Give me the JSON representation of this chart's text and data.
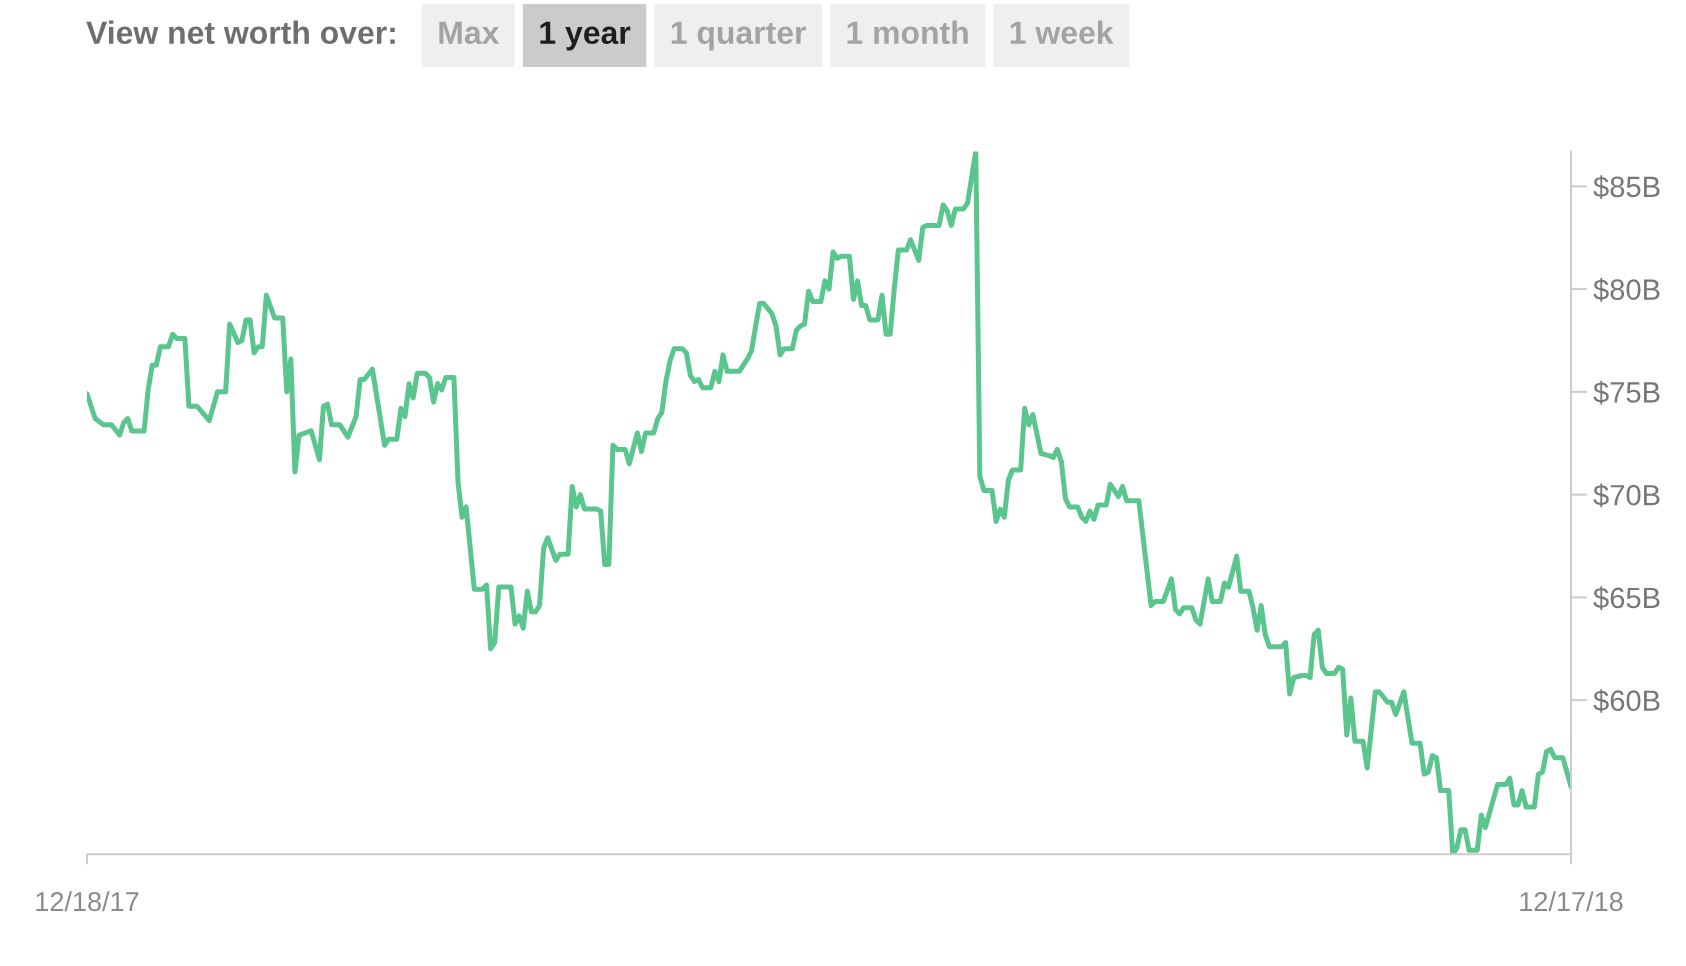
{
  "chart_data": {
    "type": "line",
    "title": "View net worth over:",
    "annotations": [
      "Max",
      "1 year",
      "1 quarter",
      "1 month",
      "1 week"
    ],
    "x": [
      "2017-12-18",
      "2017-12-20",
      "2017-12-22",
      "2017-12-24",
      "2017-12-26",
      "2017-12-27",
      "2017-12-28",
      "2017-12-29",
      "2018-01-01",
      "2018-01-02",
      "2018-01-03",
      "2018-01-04",
      "2018-01-05",
      "2018-01-07",
      "2018-01-08",
      "2018-01-09",
      "2018-01-11",
      "2018-01-12",
      "2018-01-14",
      "2018-01-17",
      "2018-01-19",
      "2018-01-21",
      "2018-01-22",
      "2018-01-24",
      "2018-01-25",
      "2018-01-26",
      "2018-01-27",
      "2018-01-28",
      "2018-01-29",
      "2018-01-30",
      "2018-01-31",
      "2018-02-02",
      "2018-02-04",
      "2018-02-05",
      "2018-02-06",
      "2018-02-07",
      "2018-02-08",
      "2018-02-11",
      "2018-02-13",
      "2018-02-14",
      "2018-02-15",
      "2018-02-16",
      "2018-02-18",
      "2018-02-20",
      "2018-02-22",
      "2018-02-23",
      "2018-02-24",
      "2018-02-26",
      "2018-03-01",
      "2018-03-02",
      "2018-03-04",
      "2018-03-05",
      "2018-03-06",
      "2018-03-07",
      "2018-03-08",
      "2018-03-09",
      "2018-03-11",
      "2018-03-12",
      "2018-03-13",
      "2018-03-14",
      "2018-03-15",
      "2018-03-16",
      "2018-03-18",
      "2018-03-19",
      "2018-03-20",
      "2018-03-21",
      "2018-03-23",
      "2018-03-25",
      "2018-03-26",
      "2018-03-27",
      "2018-03-28",
      "2018-03-29",
      "2018-04-01",
      "2018-04-02",
      "2018-04-03",
      "2018-04-04",
      "2018-04-05",
      "2018-04-06",
      "2018-04-07",
      "2018-04-08",
      "2018-04-09",
      "2018-04-10",
      "2018-04-12",
      "2018-04-13",
      "2018-04-15",
      "2018-04-16",
      "2018-04-17",
      "2018-04-18",
      "2018-04-19",
      "2018-04-22",
      "2018-04-23",
      "2018-04-24",
      "2018-04-25",
      "2018-04-26",
      "2018-04-27",
      "2018-04-29",
      "2018-04-30",
      "2018-05-02",
      "2018-05-03",
      "2018-05-04",
      "2018-05-06",
      "2018-05-07",
      "2018-05-08",
      "2018-05-09",
      "2018-05-10",
      "2018-05-11",
      "2018-05-13",
      "2018-05-14",
      "2018-05-15",
      "2018-05-16",
      "2018-05-17",
      "2018-05-18",
      "2018-05-20",
      "2018-05-21",
      "2018-05-22",
      "2018-05-23",
      "2018-05-24",
      "2018-05-27",
      "2018-05-29",
      "2018-05-30",
      "2018-05-31",
      "2018-06-01",
      "2018-06-02",
      "2018-06-04",
      "2018-06-05",
      "2018-06-06",
      "2018-06-07",
      "2018-06-09",
      "2018-06-10",
      "2018-06-11",
      "2018-06-12",
      "2018-06-13",
      "2018-06-14",
      "2018-06-16",
      "2018-06-17",
      "2018-06-18",
      "2018-06-19",
      "2018-06-20",
      "2018-06-21",
      "2018-06-23",
      "2018-06-24",
      "2018-06-25",
      "2018-06-26",
      "2018-06-27",
      "2018-06-28",
      "2018-06-30",
      "2018-07-01",
      "2018-07-02",
      "2018-07-03",
      "2018-07-04",
      "2018-07-05",
      "2018-07-07",
      "2018-07-08",
      "2018-07-10",
      "2018-07-11",
      "2018-07-12",
      "2018-07-15",
      "2018-07-16",
      "2018-07-17",
      "2018-07-18",
      "2018-07-19",
      "2018-07-21",
      "2018-07-22",
      "2018-07-24",
      "2018-07-25",
      "2018-07-26",
      "2018-07-28",
      "2018-07-29",
      "2018-07-30",
      "2018-07-31",
      "2018-08-01",
      "2018-08-02",
      "2018-08-04",
      "2018-08-05",
      "2018-08-06",
      "2018-08-07",
      "2018-08-09",
      "2018-08-11",
      "2018-08-12",
      "2018-08-13",
      "2018-08-14",
      "2018-08-15",
      "2018-08-16",
      "2018-08-18",
      "2018-08-19",
      "2018-08-20",
      "2018-08-21",
      "2018-08-22",
      "2018-08-23",
      "2018-08-25",
      "2018-08-26",
      "2018-08-28",
      "2018-08-29",
      "2018-08-30",
      "2018-09-02",
      "2018-09-05",
      "2018-09-06",
      "2018-09-08",
      "2018-09-10",
      "2018-09-11",
      "2018-09-12",
      "2018-09-13",
      "2018-09-15",
      "2018-09-16",
      "2018-09-17",
      "2018-09-19",
      "2018-09-20",
      "2018-09-22",
      "2018-09-23",
      "2018-09-24",
      "2018-09-26",
      "2018-09-27",
      "2018-09-29",
      "2018-09-30",
      "2018-10-01",
      "2018-10-02",
      "2018-10-03",
      "2018-10-04",
      "2018-10-07",
      "2018-10-08",
      "2018-10-09",
      "2018-10-10",
      "2018-10-12",
      "2018-10-13",
      "2018-10-14",
      "2018-10-15",
      "2018-10-16",
      "2018-10-17",
      "2018-10-18",
      "2018-10-20",
      "2018-10-21",
      "2018-10-22",
      "2018-10-23",
      "2018-10-24",
      "2018-10-25",
      "2018-10-27",
      "2018-10-28",
      "2018-10-30",
      "2018-10-31",
      "2018-11-02",
      "2018-11-03",
      "2018-11-04",
      "2018-11-06",
      "2018-11-08",
      "2018-11-10",
      "2018-11-11",
      "2018-11-12",
      "2018-11-13",
      "2018-11-14",
      "2018-11-15",
      "2018-11-17",
      "2018-11-18",
      "2018-11-19",
      "2018-11-20",
      "2018-11-21",
      "2018-11-22",
      "2018-11-24",
      "2018-11-25",
      "2018-11-26",
      "2018-11-29",
      "2018-12-01",
      "2018-12-02",
      "2018-12-03",
      "2018-12-04",
      "2018-12-05",
      "2018-12-06",
      "2018-12-08",
      "2018-12-09",
      "2018-12-10",
      "2018-12-11",
      "2018-12-12",
      "2018-12-13",
      "2018-12-15",
      "2018-12-17"
    ],
    "series": [
      {
        "color": "#5bc58e",
        "values": [
          74.9,
          73.7,
          73.4,
          73.4,
          72.9,
          73.5,
          73.7,
          73.1,
          73.1,
          75.1,
          76.3,
          76.3,
          77.2,
          77.2,
          77.8,
          77.6,
          77.6,
          74.3,
          74.3,
          73.6,
          75.0,
          75.0,
          78.3,
          77.4,
          77.5,
          78.5,
          78.5,
          76.9,
          77.2,
          77.2,
          79.7,
          78.6,
          78.6,
          75.0,
          76.6,
          71.1,
          72.9,
          73.1,
          71.7,
          74.3,
          74.4,
          73.4,
          73.4,
          72.8,
          73.8,
          75.6,
          75.6,
          76.1,
          72.4,
          72.7,
          72.7,
          74.2,
          73.8,
          75.4,
          74.7,
          75.9,
          75.9,
          75.7,
          74.5,
          75.4,
          75.1,
          75.7,
          75.7,
          70.6,
          68.9,
          69.4,
          65.4,
          65.4,
          65.6,
          62.5,
          62.8,
          65.5,
          65.5,
          63.7,
          64.1,
          63.5,
          65.3,
          64.3,
          64.3,
          64.6,
          67.4,
          67.9,
          66.8,
          67.1,
          67.1,
          70.4,
          69.4,
          70.0,
          69.3,
          69.3,
          69.2,
          66.6,
          66.6,
          72.4,
          72.2,
          72.2,
          71.5,
          73.0,
          72.1,
          73.0,
          73.0,
          73.7,
          74.0,
          75.5,
          76.5,
          77.1,
          77.1,
          76.9,
          75.8,
          75.5,
          75.6,
          75.2,
          75.2,
          76.0,
          75.5,
          76.8,
          76.0,
          76.0,
          76.6,
          77.0,
          78.2,
          79.3,
          79.3,
          78.8,
          78.2,
          76.8,
          77.1,
          77.1,
          78.0,
          78.2,
          78.3,
          79.9,
          79.4,
          79.4,
          80.4,
          80.0,
          81.8,
          81.5,
          81.6,
          81.6,
          79.5,
          80.4,
          79.2,
          79.2,
          78.5,
          78.5,
          79.7,
          77.8,
          77.8,
          80.0,
          81.9,
          81.9,
          82.4,
          81.4,
          83.0,
          83.1,
          83.1,
          84.1,
          83.8,
          83.1,
          83.9,
          83.9,
          84.2,
          86.7,
          70.9,
          70.2,
          70.2,
          68.7,
          69.3,
          68.9,
          70.7,
          71.2,
          71.2,
          74.2,
          73.4,
          73.9,
          72.0,
          71.9,
          71.8,
          72.2,
          71.6,
          69.8,
          69.4,
          69.4,
          68.9,
          68.7,
          69.2,
          68.8,
          69.5,
          69.5,
          70.5,
          69.9,
          70.4,
          69.7,
          69.7,
          64.6,
          64.8,
          64.8,
          65.9,
          64.4,
          64.2,
          64.5,
          64.5,
          63.9,
          63.7,
          65.9,
          64.8,
          64.8,
          65.7,
          65.5,
          67.0,
          65.3,
          65.3,
          64.5,
          63.4,
          64.6,
          63.2,
          62.6,
          62.6,
          62.8,
          60.3,
          61.1,
          61.2,
          61.2,
          61.1,
          63.2,
          63.4,
          61.6,
          61.3,
          61.3,
          61.6,
          61.5,
          58.3,
          60.1,
          58.0,
          58.0,
          56.7,
          60.4,
          60.4,
          59.9,
          59.9,
          59.3,
          60.4,
          57.9,
          57.9,
          56.4,
          56.5,
          57.3,
          57.2,
          55.6,
          55.6,
          52.5,
          52.8,
          53.7,
          53.7,
          52.7,
          52.7,
          54.4,
          53.8,
          55.9,
          55.9,
          56.2,
          54.9,
          54.9,
          55.6,
          54.8,
          54.8,
          56.4,
          56.5,
          57.5,
          57.6,
          57.2,
          57.2,
          55.8
        ]
      }
    ],
    "line_style": "solid",
    "xlim": [
      "2017-12-18",
      "2018-12-17"
    ],
    "xticks": [
      {
        "value": "2017-12-18",
        "label": "12/18/17"
      },
      {
        "value": "2018-12-17",
        "label": "12/17/18"
      }
    ],
    "ylim": [
      52.5,
      86.7
    ],
    "yticks": [
      {
        "value": 60,
        "label": "$60B"
      },
      {
        "value": 65,
        "label": "$65B"
      },
      {
        "value": 70,
        "label": "$70B"
      },
      {
        "value": 75,
        "label": "$75B"
      },
      {
        "value": 80,
        "label": "$80B"
      },
      {
        "value": 85,
        "label": "$85B"
      }
    ]
  }
}
